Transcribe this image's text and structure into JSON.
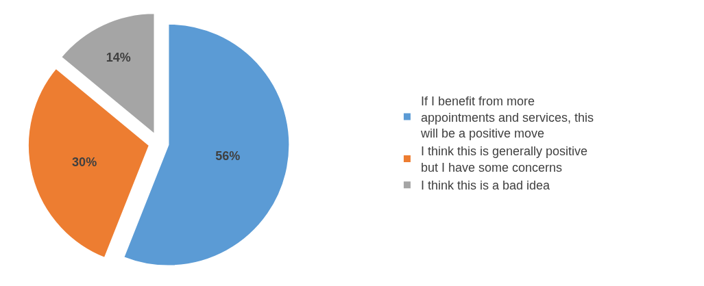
{
  "chart_data": {
    "type": "pie",
    "categories": [
      "If I benefit from more appointments and services, this will be a positive move",
      "I think this is generally positive but I have some concerns",
      "I think this is a bad idea"
    ],
    "values": [
      56,
      30,
      14
    ],
    "colors": [
      "#5b9bd5",
      "#ed7d31",
      "#a5a5a5"
    ],
    "value_labels": [
      "56%",
      "30%",
      "14%"
    ],
    "legend": "right"
  }
}
